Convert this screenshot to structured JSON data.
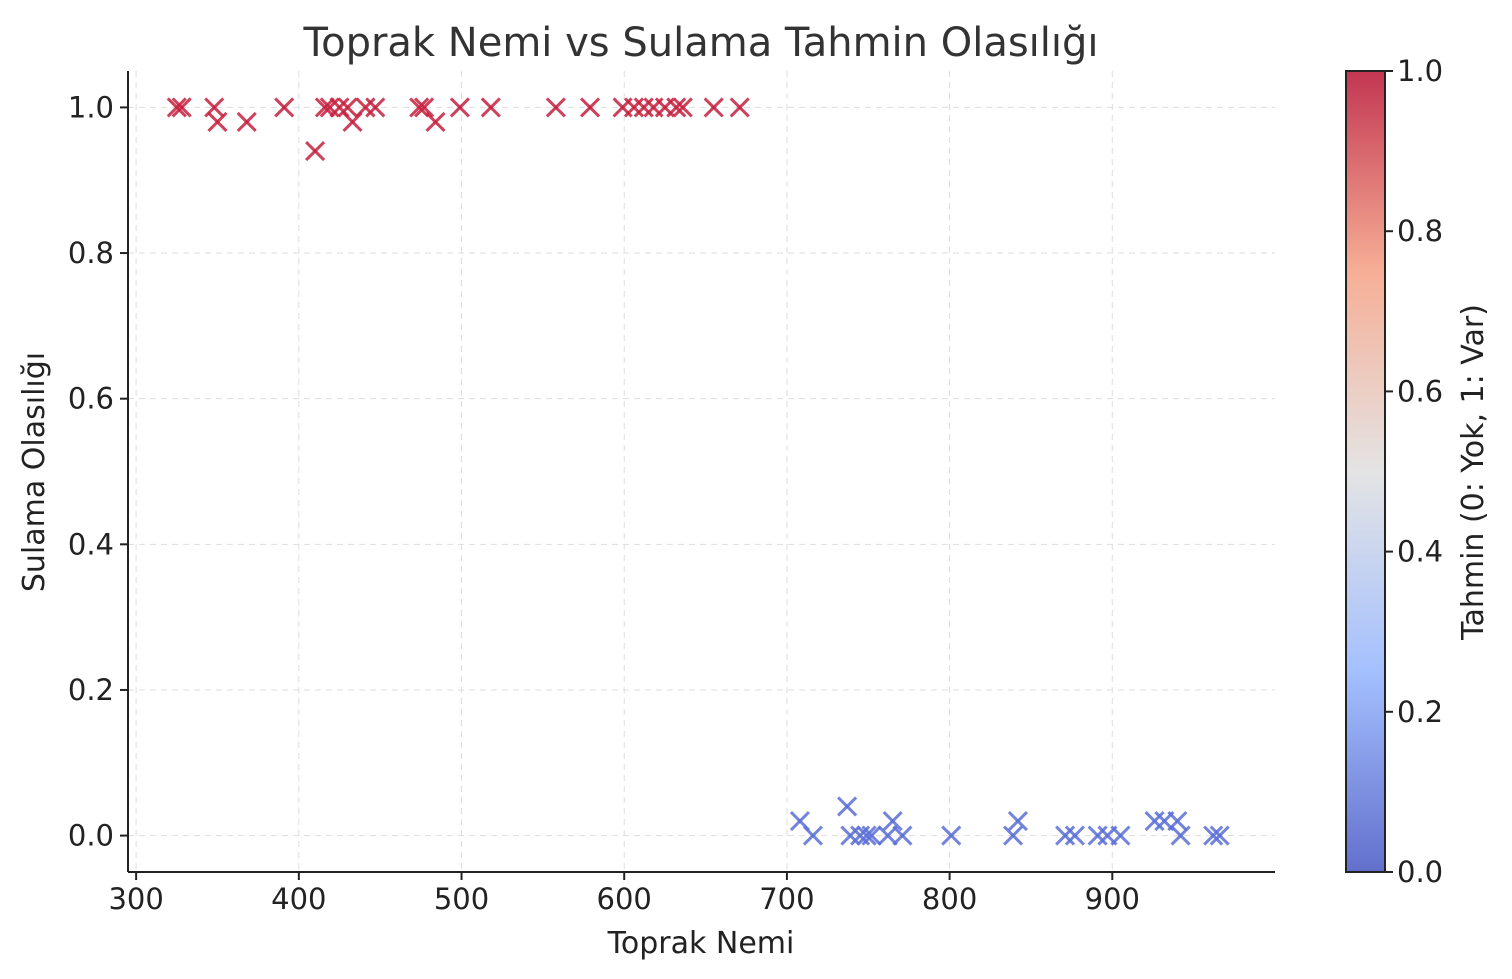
{
  "chart_data": {
    "type": "scatter",
    "title": "Toprak Nemi vs Sulama Tahmin Olasılığı",
    "xlabel": "Toprak Nemi",
    "ylabel": "Sulama Olasılığı",
    "xlim": [
      295,
      1000
    ],
    "ylim": [
      -0.05,
      1.05
    ],
    "x_ticks": [
      300,
      400,
      500,
      600,
      700,
      800,
      900
    ],
    "x_tick_labels": [
      "300",
      "400",
      "500",
      "600",
      "700",
      "800",
      "900"
    ],
    "y_ticks": [
      0.0,
      0.2,
      0.4,
      0.6,
      0.8,
      1.0
    ],
    "y_tick_labels": [
      "0.0",
      "0.2",
      "0.4",
      "0.6",
      "0.8",
      "1.0"
    ],
    "grid": true,
    "marker": "x",
    "colormap": "coolwarm",
    "colormap_colors": {
      "low": "#5b6fd6",
      "mid": "#dddddd",
      "high": "#c5203e"
    },
    "colorbar": {
      "label": "Tahmin (0: Yok, 1: Var)",
      "range": [
        0,
        1
      ],
      "ticks": [
        0.0,
        0.2,
        0.4,
        0.6,
        0.8,
        1.0
      ],
      "tick_labels": [
        "0.0",
        "0.2",
        "0.4",
        "0.6",
        "0.8",
        "1.0"
      ]
    },
    "points": [
      {
        "x": 325,
        "y": 1.0,
        "c": 1
      },
      {
        "x": 328,
        "y": 1.0,
        "c": 1
      },
      {
        "x": 348,
        "y": 1.0,
        "c": 1
      },
      {
        "x": 350,
        "y": 0.98,
        "c": 1
      },
      {
        "x": 368,
        "y": 0.98,
        "c": 1
      },
      {
        "x": 391,
        "y": 1.0,
        "c": 1
      },
      {
        "x": 410,
        "y": 0.94,
        "c": 1
      },
      {
        "x": 416,
        "y": 1.0,
        "c": 1
      },
      {
        "x": 419,
        "y": 1.0,
        "c": 1
      },
      {
        "x": 425,
        "y": 1.0,
        "c": 1
      },
      {
        "x": 430,
        "y": 1.0,
        "c": 1
      },
      {
        "x": 433,
        "y": 0.98,
        "c": 1
      },
      {
        "x": 441,
        "y": 1.0,
        "c": 1
      },
      {
        "x": 447,
        "y": 1.0,
        "c": 1
      },
      {
        "x": 474,
        "y": 1.0,
        "c": 1
      },
      {
        "x": 477,
        "y": 1.0,
        "c": 1
      },
      {
        "x": 484,
        "y": 0.98,
        "c": 1
      },
      {
        "x": 499,
        "y": 1.0,
        "c": 1
      },
      {
        "x": 518,
        "y": 1.0,
        "c": 1
      },
      {
        "x": 558,
        "y": 1.0,
        "c": 1
      },
      {
        "x": 579,
        "y": 1.0,
        "c": 1
      },
      {
        "x": 599,
        "y": 1.0,
        "c": 1
      },
      {
        "x": 606,
        "y": 1.0,
        "c": 1
      },
      {
        "x": 612,
        "y": 1.0,
        "c": 1
      },
      {
        "x": 618,
        "y": 1.0,
        "c": 1
      },
      {
        "x": 625,
        "y": 1.0,
        "c": 1
      },
      {
        "x": 632,
        "y": 1.0,
        "c": 1
      },
      {
        "x": 636,
        "y": 1.0,
        "c": 1
      },
      {
        "x": 655,
        "y": 1.0,
        "c": 1
      },
      {
        "x": 671,
        "y": 1.0,
        "c": 1
      },
      {
        "x": 708,
        "y": 0.02,
        "c": 0
      },
      {
        "x": 716,
        "y": 0.0,
        "c": 0
      },
      {
        "x": 737,
        "y": 0.04,
        "c": 0
      },
      {
        "x": 739,
        "y": 0.0,
        "c": 0
      },
      {
        "x": 745,
        "y": 0.0,
        "c": 0
      },
      {
        "x": 749,
        "y": 0.0,
        "c": 0
      },
      {
        "x": 752,
        "y": 0.0,
        "c": 0
      },
      {
        "x": 762,
        "y": 0.0,
        "c": 0
      },
      {
        "x": 765,
        "y": 0.02,
        "c": 0
      },
      {
        "x": 771,
        "y": 0.0,
        "c": 0
      },
      {
        "x": 801,
        "y": 0.0,
        "c": 0
      },
      {
        "x": 839,
        "y": 0.0,
        "c": 0
      },
      {
        "x": 842,
        "y": 0.02,
        "c": 0
      },
      {
        "x": 871,
        "y": 0.0,
        "c": 0
      },
      {
        "x": 877,
        "y": 0.0,
        "c": 0
      },
      {
        "x": 891,
        "y": 0.0,
        "c": 0
      },
      {
        "x": 897,
        "y": 0.0,
        "c": 0
      },
      {
        "x": 905,
        "y": 0.0,
        "c": 0
      },
      {
        "x": 926,
        "y": 0.02,
        "c": 0
      },
      {
        "x": 932,
        "y": 0.02,
        "c": 0
      },
      {
        "x": 940,
        "y": 0.02,
        "c": 0
      },
      {
        "x": 942,
        "y": 0.0,
        "c": 0
      },
      {
        "x": 962,
        "y": 0.0,
        "c": 0
      },
      {
        "x": 966,
        "y": 0.0,
        "c": 0
      }
    ]
  }
}
